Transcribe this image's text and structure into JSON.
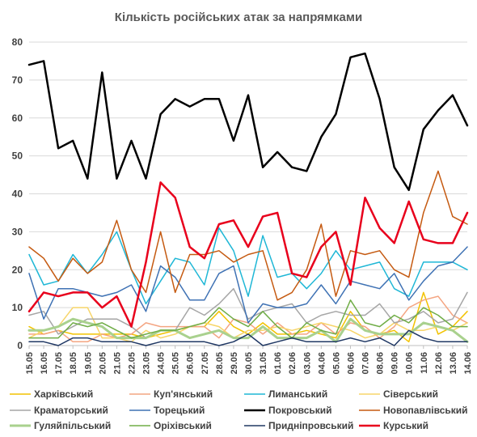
{
  "chart_data": {
    "type": "line",
    "title": "Кількість російських атак за напрямками",
    "xlabel": "",
    "ylabel": "",
    "ylim": [
      0,
      80
    ],
    "yticks": [
      0,
      10,
      20,
      30,
      40,
      50,
      60,
      70,
      80
    ],
    "grid": "horizontal",
    "legend_position": "bottom",
    "categories": [
      "15.05",
      "16.05",
      "17.05",
      "18.05",
      "19.05",
      "20.05",
      "21.05",
      "22.05",
      "23.05",
      "24.05",
      "25.05",
      "26.05",
      "27.05",
      "28.05",
      "29.05",
      "30.05",
      "31.05",
      "01.06",
      "02.06",
      "03.06",
      "04.06",
      "05.06",
      "06.06",
      "07.06",
      "08.06",
      "09.06",
      "10.06",
      "11.06",
      "12.06",
      "13.06",
      "14.06"
    ],
    "tick_labels": [
      "15.05",
      "16.05",
      "17.05",
      "18.05",
      "19.05",
      "20.05",
      "21.05",
      "22.05",
      "23.05",
      "24.05",
      "25.05",
      "26.05",
      "27.05",
      "28.05",
      "29.05",
      "30.05",
      "31.05",
      "01.06",
      "02.06",
      "03.06",
      "04.06",
      "05.06",
      "06.06",
      "07.06",
      "08.06",
      "09.06",
      "10.06",
      "11.06",
      "12.06",
      "13.06",
      "14.06"
    ],
    "series": [
      {
        "name": "Харківський",
        "color": "#f2c200",
        "width": 1.5,
        "values": [
          5,
          3,
          4,
          3,
          3,
          3,
          3,
          3,
          2,
          3,
          4,
          5,
          5,
          9,
          5,
          3,
          6,
          3,
          3,
          4,
          3,
          2,
          9,
          4,
          3,
          4,
          1,
          14,
          3,
          5,
          9
        ]
      },
      {
        "name": "Куп'янський",
        "color": "#f4a582",
        "width": 1.5,
        "values": [
          3,
          3,
          4,
          1,
          1,
          3,
          2,
          3,
          6,
          5,
          5,
          5,
          5,
          2,
          7,
          6,
          3,
          6,
          3,
          3,
          6,
          3,
          6,
          5,
          2,
          5,
          10,
          12,
          13,
          8,
          6
        ]
      },
      {
        "name": "Лиманський",
        "color": "#1fb7d6",
        "width": 1.5,
        "values": [
          24,
          16,
          17,
          24,
          19,
          24,
          30,
          20,
          11,
          17,
          23,
          22,
          16,
          31,
          25,
          13,
          29,
          18,
          19,
          15,
          19,
          25,
          20,
          21,
          22,
          15,
          13,
          22,
          22,
          22,
          20
        ]
      },
      {
        "name": "Сіверський",
        "color": "#f7d56a",
        "width": 1.5,
        "values": [
          2,
          4,
          5,
          10,
          10,
          2,
          2,
          1,
          4,
          2,
          3,
          5,
          6,
          5,
          2,
          4,
          4,
          5,
          4,
          5,
          6,
          5,
          4,
          2,
          3,
          6,
          4,
          4,
          5,
          4,
          6
        ]
      },
      {
        "name": "Краматорський",
        "color": "#a6a6a6",
        "width": 1.5,
        "values": [
          8,
          9,
          3,
          5,
          7,
          7,
          7,
          5,
          2,
          4,
          4,
          10,
          8,
          11,
          15,
          7,
          9,
          10,
          11,
          6,
          8,
          9,
          8,
          8,
          11,
          6,
          7,
          9,
          6,
          7,
          14
        ]
      },
      {
        "name": "Торецький",
        "color": "#3f72b4",
        "width": 1.5,
        "values": [
          19,
          7,
          15,
          15,
          14,
          13,
          14,
          16,
          9,
          21,
          18,
          12,
          12,
          19,
          21,
          6,
          11,
          10,
          10,
          11,
          16,
          11,
          17,
          16,
          15,
          19,
          12,
          17,
          21,
          22,
          26
        ]
      },
      {
        "name": "Покровський",
        "color": "#000000",
        "width": 2.5,
        "values": [
          74,
          75,
          52,
          54,
          44,
          72,
          44,
          54,
          44,
          61,
          65,
          63,
          65,
          65,
          54,
          66,
          47,
          51,
          47,
          46,
          55,
          61,
          76,
          77,
          65,
          47,
          41,
          57,
          62,
          66,
          58
        ]
      },
      {
        "name": "Новопавлівський",
        "color": "#c55a11",
        "width": 1.5,
        "values": [
          26,
          23,
          17,
          23,
          19,
          22,
          33,
          20,
          14,
          30,
          14,
          24,
          24,
          25,
          22,
          24,
          25,
          12,
          14,
          20,
          32,
          13,
          25,
          24,
          25,
          20,
          18,
          35,
          46,
          34,
          32
        ]
      },
      {
        "name": "Гуляйпільський",
        "color": "#a9d18e",
        "width": 3,
        "values": [
          4,
          4,
          5,
          7,
          6,
          5,
          2,
          2,
          2,
          4,
          4,
          2,
          3,
          4,
          2,
          2,
          5,
          2,
          2,
          2,
          4,
          1,
          7,
          4,
          3,
          3,
          3,
          6,
          5,
          4,
          1
        ]
      },
      {
        "name": "Оріхівський",
        "color": "#70ad47",
        "width": 1.5,
        "values": [
          2,
          2,
          2,
          6,
          5,
          6,
          4,
          2,
          3,
          4,
          4,
          5,
          6,
          10,
          7,
          5,
          9,
          5,
          2,
          6,
          4,
          3,
          12,
          6,
          5,
          8,
          6,
          10,
          8,
          5,
          5
        ]
      },
      {
        "name": "Придніпровський",
        "color": "#203864",
        "width": 1.5,
        "values": [
          1,
          1,
          0,
          2,
          2,
          1,
          1,
          1,
          0,
          1,
          1,
          1,
          1,
          0,
          1,
          3,
          0,
          1,
          2,
          1,
          1,
          1,
          2,
          1,
          2,
          0,
          4,
          2,
          1,
          1,
          1
        ]
      },
      {
        "name": "Курський",
        "color": "#e8001c",
        "width": 2.5,
        "values": [
          9,
          14,
          13,
          14,
          14,
          10,
          13,
          5,
          22,
          43,
          39,
          26,
          23,
          32,
          33,
          26,
          34,
          35,
          19,
          18,
          26,
          30,
          16,
          39,
          31,
          27,
          38,
          28,
          27,
          27,
          35
        ]
      }
    ]
  }
}
